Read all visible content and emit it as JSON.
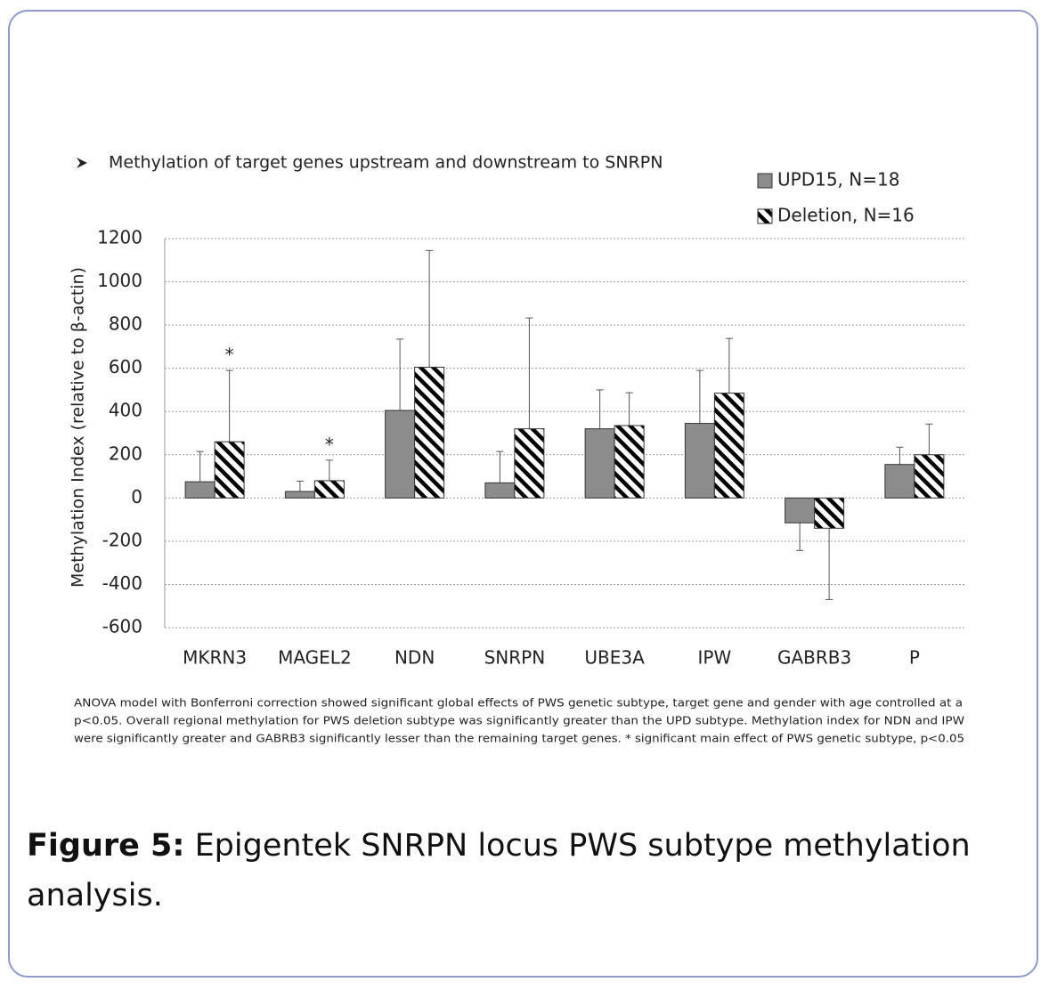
{
  "chart_data": {
    "type": "bar",
    "subtitle": "Methylation of target genes upstream and downstream to SNRPN",
    "y_label": "Methylation Index (relative to β-actin)",
    "categories": [
      "MKRN3",
      "MAGEL2",
      "NDN",
      "SNRPN",
      "UBE3A",
      "IPW",
      "GABRB3",
      "P"
    ],
    "series": [
      {
        "name": "UPD15, N=18",
        "color": "#8c8c8c",
        "values": [
          75,
          30,
          405,
          70,
          320,
          345,
          -115,
          155
        ],
        "errors": [
          140,
          48,
          330,
          145,
          180,
          245,
          128,
          80
        ]
      },
      {
        "name": "Deletion, N=16",
        "color": "#000000",
        "pattern": "hatch",
        "values": [
          260,
          80,
          605,
          320,
          335,
          485,
          -140,
          200
        ],
        "errors": [
          330,
          95,
          540,
          513,
          152,
          253,
          330,
          142
        ]
      }
    ],
    "annotations": [
      {
        "text": "*",
        "category": "MKRN3"
      },
      {
        "text": "*",
        "category": "MAGEL2"
      }
    ],
    "ylim": [
      -600,
      1200
    ],
    "yticks": [
      -600,
      -400,
      -200,
      0,
      200,
      400,
      600,
      800,
      1000,
      1200
    ],
    "grid": true,
    "legend": "top-right",
    "footnote": [
      "ANOVA model with Bonferroni correction showed significant global effects of PWS genetic subtype, target gene and gender with age controlled at a",
      "p<0.05. Overall regional methylation for PWS deletion subtype was significantly greater than the UPD subtype. Methylation index for NDN and IPW",
      "were significantly greater and GABRB3 significantly lesser than the remaining target genes.  * significant main effect of PWS genetic subtype, p<0.05"
    ]
  },
  "caption": {
    "label": "Figure 5:",
    "text": "Epigentek SNRPN locus PWS subtype methylation analysis."
  }
}
